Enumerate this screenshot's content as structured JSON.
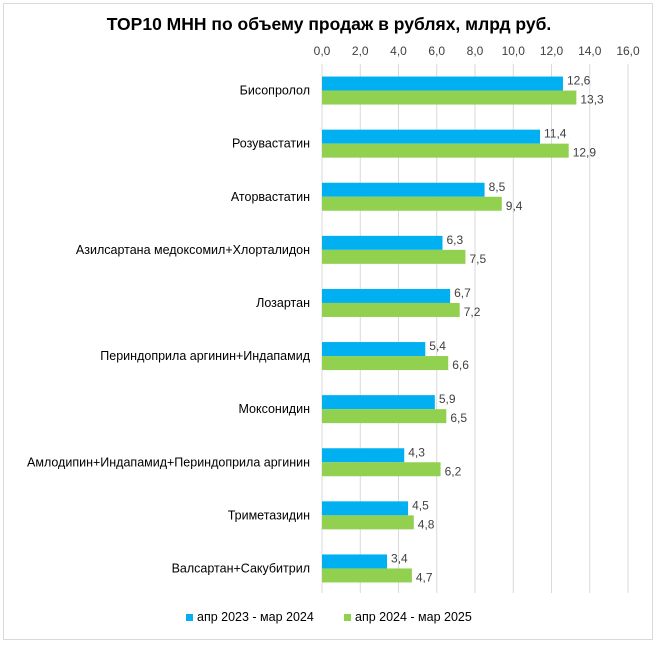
{
  "chart_data": {
    "type": "bar",
    "orientation": "horizontal",
    "title": "TOP10 МНН по объему продаж в рублях, млрд руб.",
    "categories": [
      "Бисопролол",
      "Розувастатин",
      "Аторвастатин",
      "Азилсартана медоксомил+Хлорталидон",
      "Лозартан",
      "Периндоприла аргинин+Индапамид",
      "Моксонидин",
      "Амлодипин+Индапамид+Периндоприла аргинин",
      "Триметазидин",
      "Валсартан+Сакубитрил"
    ],
    "series": [
      {
        "name": "апр 2023 - мар 2024",
        "color": "#00b0f0",
        "values": [
          12.6,
          11.4,
          8.5,
          6.3,
          6.7,
          5.4,
          5.9,
          4.3,
          4.5,
          3.4
        ],
        "labels": [
          "12,6",
          "11,4",
          "8,5",
          "6,3",
          "6,7",
          "5,4",
          "5,9",
          "4,3",
          "4,5",
          "3,4"
        ]
      },
      {
        "name": "апр 2024 - мар 2025",
        "color": "#92d050",
        "values": [
          13.3,
          12.9,
          9.4,
          7.5,
          7.2,
          6.6,
          6.5,
          6.2,
          4.8,
          4.7
        ],
        "labels": [
          "13,3",
          "12,9",
          "9,4",
          "7,5",
          "7,2",
          "6,6",
          "6,5",
          "6,2",
          "4,8",
          "4,7"
        ]
      }
    ],
    "xlim": [
      0,
      16
    ],
    "x_ticks": [
      "0,0",
      "2,0",
      "4,0",
      "6,0",
      "8,0",
      "10,0",
      "12,0",
      "14,0",
      "16,0"
    ],
    "x_axis_position": "top",
    "grid": true,
    "legend_position": "bottom"
  }
}
